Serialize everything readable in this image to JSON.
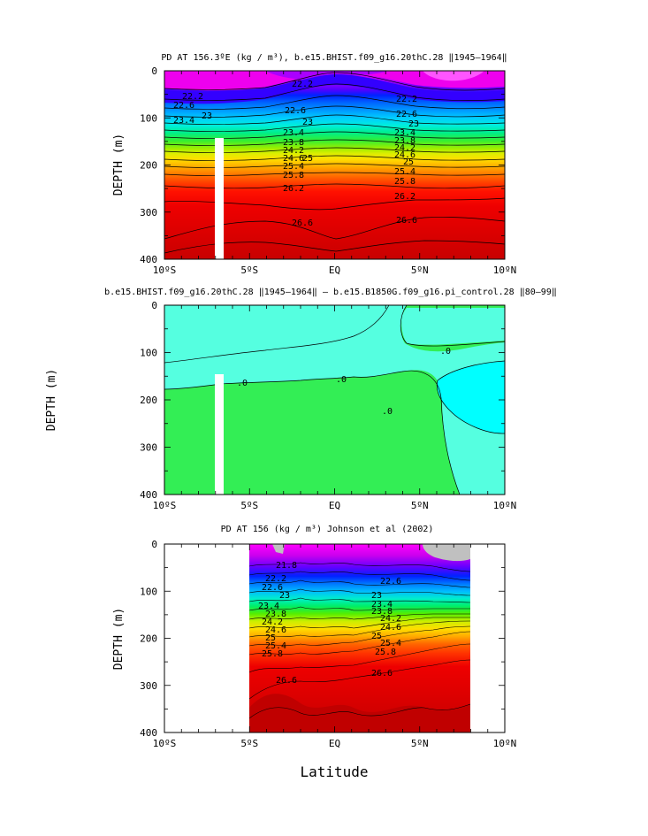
{
  "chart_data": [
    {
      "type": "heatmap",
      "title": "PD AT 156.3ºE (kg / m³), b.e15.BHIST.f09_g16.20thC.28 ‖1945–1964‖",
      "ylabel": "DEPTH (m)",
      "xlabel": "",
      "x_ticks": [
        "10ºS",
        "5ºS",
        "EQ",
        "5ºN",
        "10ºN"
      ],
      "y_ticks": [
        "0",
        "100",
        "200",
        "300",
        "400"
      ],
      "xlim": [
        -10,
        10
      ],
      "ylim": [
        400,
        0
      ],
      "contour_labels": [
        "22.2",
        "22.6",
        "23",
        "23.4",
        "23.8",
        "24.2",
        "24.6",
        "25",
        "25.4",
        "25.8",
        "26.2",
        "26.6",
        "22.2",
        "22.6",
        "23",
        "23.4",
        "23.8",
        "24.2",
        "24.6",
        "25",
        "25.4",
        "25.8",
        "26.2",
        "26.6"
      ],
      "masked_strip": {
        "lat_min": -3.0,
        "lat_max": -3.5,
        "depth_min": 150,
        "depth_max": 400
      }
    },
    {
      "type": "heatmap",
      "title": "b.e15.BHIST.f09_g16.20thC.28 ‖1945–1964‖ – b.e15.B1850G.f09_g16.pi_control.28 ‖80–99‖",
      "ylabel": "DEPTH (m)",
      "xlabel": "",
      "x_ticks": [
        "10ºS",
        "5ºS",
        "EQ",
        "5ºN",
        "10ºN"
      ],
      "y_ticks": [
        "0",
        "100",
        "200",
        "300",
        "400"
      ],
      "xlim": [
        -10,
        10
      ],
      "ylim": [
        400,
        0
      ],
      "contour_labels": [
        ".0",
        ".0",
        ".0",
        ".0"
      ],
      "fill_colors": {
        "negative": "#55ffe0",
        "positive": "#33ee55",
        "strong_negative": "#00ffff"
      },
      "masked_strip": {
        "lat_min": -3.0,
        "lat_max": -3.5,
        "depth_min": 150,
        "depth_max": 400
      }
    },
    {
      "type": "heatmap",
      "title": "PD AT 156 (kg / m³) Johnson et al (2002)",
      "ylabel": "DEPTH (m)",
      "xlabel": "Latitude",
      "x_ticks": [
        "10ºS",
        "5ºS",
        "EQ",
        "5ºN",
        "10ºN"
      ],
      "y_ticks": [
        "0",
        "100",
        "200",
        "300",
        "400"
      ],
      "xlim": [
        -10,
        10
      ],
      "ylim": [
        400,
        0
      ],
      "data_extent": {
        "lat_min": -5,
        "lat_max": 8
      },
      "contour_labels": [
        "21.8",
        "22.2",
        "22.6",
        "23",
        "23.4",
        "23.8",
        "24.2",
        "24.6",
        "25",
        "25.4",
        "25.8",
        "26.2",
        "26.6",
        "22.6",
        "23",
        "23.4",
        "23.8",
        "24.2",
        "24.6",
        "25",
        "25.4",
        "25.8",
        "26.2",
        "26.6"
      ]
    }
  ],
  "palette": [
    "#ee00ee",
    "#aa00ff",
    "#5500ff",
    "#0022ff",
    "#0066ff",
    "#0099ff",
    "#00ccff",
    "#00eedd",
    "#00ee88",
    "#33ee33",
    "#99ee00",
    "#ddee00",
    "#ffdd00",
    "#ffaa00",
    "#ff7700",
    "#ff4400",
    "#ff1100",
    "#ee0000",
    "#dd0000",
    "#c80000"
  ]
}
